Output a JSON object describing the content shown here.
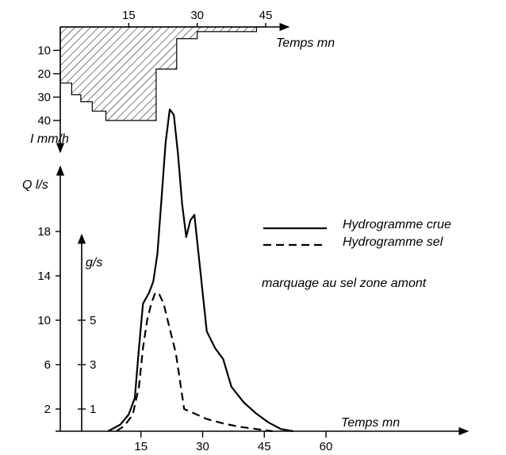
{
  "chart_data": [
    {
      "type": "bar",
      "name": "hyetogram",
      "xlabel": "Temps  mn",
      "ylabel": "I mm/h",
      "xlim": [
        0,
        45
      ],
      "ylim": [
        0,
        40
      ],
      "y_inverted": true,
      "x_ticks": [
        "15",
        "30",
        "45"
      ],
      "y_ticks": [
        "10",
        "20",
        "30",
        "40"
      ],
      "hatch": "diagonal",
      "steps": [
        {
          "from": 0,
          "to": 0,
          "value": 24
        },
        {
          "from": 0,
          "to": 2.5,
          "value": 24
        },
        {
          "from": 2.5,
          "to": 4.5,
          "value": 29
        },
        {
          "from": 4.5,
          "to": 7,
          "value": 32
        },
        {
          "from": 7,
          "to": 10,
          "value": 36
        },
        {
          "from": 10,
          "to": 16,
          "value": 40
        },
        {
          "from": 16,
          "to": 21,
          "value": 40
        },
        {
          "from": 21,
          "to": 25.5,
          "value": 18
        },
        {
          "from": 25.5,
          "to": 30,
          "value": 5
        },
        {
          "from": 30,
          "to": 43,
          "value": 2
        },
        {
          "from": 43,
          "to": 45,
          "value": 0
        }
      ]
    },
    {
      "type": "line",
      "name": "hydrographs",
      "xlabel": "Temps  mn",
      "ylabel": "Q l/s",
      "y2label": "g/s",
      "xlim": [
        0,
        60
      ],
      "ylim": [
        0,
        22
      ],
      "x_ticks": [
        "15",
        "30",
        "45",
        "60"
      ],
      "y_ticks": [
        "2",
        "6",
        "10",
        "14",
        "18"
      ],
      "y2_ticks": [
        "1",
        "3",
        "5"
      ],
      "series": [
        {
          "name": "Hydrogramme  crue",
          "style": "solid",
          "x": [
            7,
            10,
            12,
            13.5,
            14.5,
            15.5,
            17,
            18,
            19,
            20,
            21,
            22,
            23,
            24,
            25,
            26,
            27,
            28,
            29,
            30,
            31,
            33,
            35,
            37,
            40,
            43,
            46,
            49,
            52
          ],
          "y": [
            0,
            0.6,
            1.5,
            3,
            7.5,
            11.5,
            12.5,
            13.5,
            16,
            21,
            26,
            29,
            28.5,
            25,
            20.5,
            17.5,
            19,
            19.5,
            16,
            12.5,
            9,
            7.5,
            6.5,
            4,
            2.6,
            1.6,
            0.8,
            0.2,
            0
          ]
        },
        {
          "name": "Hydrogramme  sel",
          "style": "dashed",
          "x": [
            9,
            11,
            13,
            14.5,
            15.5,
            16.5,
            17.5,
            18.5,
            19.5,
            20.5,
            21.5,
            22.5,
            23.5,
            24.5,
            25.5,
            28,
            31,
            35,
            39,
            43,
            47
          ],
          "y": [
            0,
            0.5,
            1.5,
            4,
            7.5,
            10,
            11.5,
            12.5,
            12.3,
            11.5,
            10,
            8.5,
            7,
            4.5,
            2,
            1.6,
            1.1,
            0.7,
            0.4,
            0.2,
            0
          ]
        }
      ],
      "annotation": "marquage au sel zone amont"
    }
  ]
}
